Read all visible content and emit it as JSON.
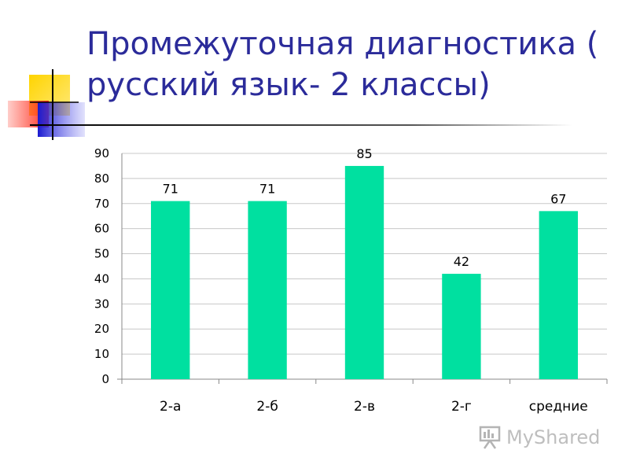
{
  "title": "Промежуточная диагностика ( русский язык- 2 классы)",
  "watermark": {
    "text": "MyShared",
    "icon": "presentation-board-icon"
  },
  "colors": {
    "bar": "#00e0a0",
    "title": "#2b2b9a",
    "grid": "#c8c8c8",
    "axis": "#888888"
  },
  "chart_data": {
    "type": "bar",
    "title": "",
    "xlabel": "",
    "ylabel": "",
    "categories": [
      "2-а",
      "2-б",
      "2-в",
      "2-г",
      "средние"
    ],
    "values": [
      71,
      71,
      85,
      42,
      67
    ],
    "data_labels": [
      "71",
      "71",
      "85",
      "42",
      "67"
    ],
    "ylim": [
      0,
      90
    ],
    "yticks": [
      0,
      10,
      20,
      30,
      40,
      50,
      60,
      70,
      80,
      90
    ],
    "grid": true,
    "legend": "none"
  }
}
